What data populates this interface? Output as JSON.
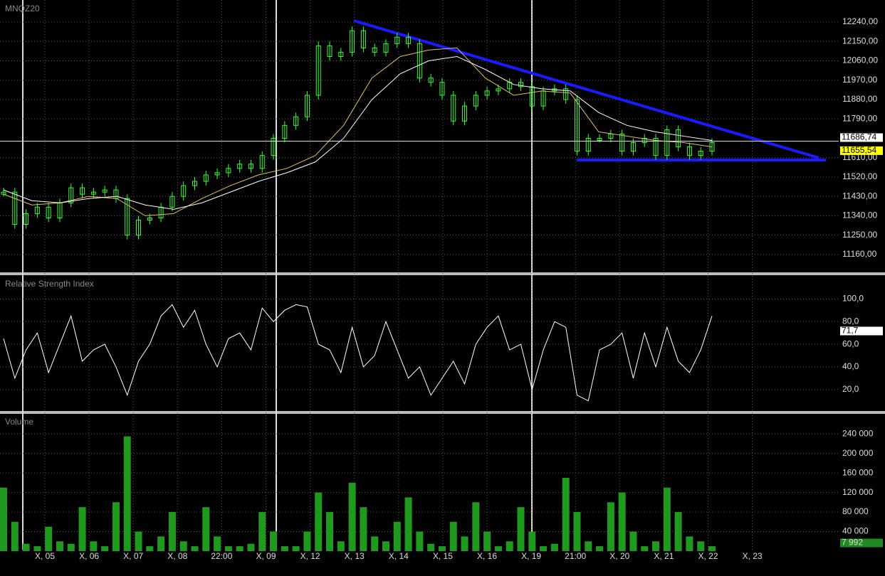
{
  "chart_data": [
    {
      "type": "candlestick",
      "title": "MNQZ20",
      "color": "#33ff33",
      "ylim": [
        11077,
        12336
      ],
      "yticks": [
        {
          "value": 11160,
          "label": "11160,00"
        },
        {
          "value": 11250,
          "label": "11250,00"
        },
        {
          "value": 11340,
          "label": "11340,00"
        },
        {
          "value": 11430,
          "label": "11430,00"
        },
        {
          "value": 11520,
          "label": "11520,00"
        },
        {
          "value": 11610,
          "label": "11610,00"
        },
        {
          "value": 11790,
          "label": "11790,00"
        },
        {
          "value": 11880,
          "label": "11880,00"
        },
        {
          "value": 11970,
          "label": "11970,00"
        },
        {
          "value": 12060,
          "label": "12060,00"
        },
        {
          "value": 12150,
          "label": "12150,00"
        },
        {
          "value": 12240,
          "label": "12240,00"
        }
      ],
      "values": [
        11450,
        11300,
        11350,
        11380,
        11330,
        11400,
        11470,
        11440,
        11450,
        11460,
        11420,
        11250,
        11320,
        11330,
        11380,
        11430,
        11480,
        11500,
        11530,
        11540,
        11560,
        11580,
        11560,
        11620,
        11700,
        11760,
        11800,
        11900,
        12130,
        12080,
        12100,
        12200,
        12120,
        12100,
        12140,
        12170,
        12140,
        11980,
        11960,
        11900,
        11780,
        11850,
        11900,
        11920,
        11930,
        11960,
        11940,
        11850,
        11920,
        11930,
        11880,
        11640,
        11700,
        11700,
        11720,
        11640,
        11680,
        11700,
        11620,
        11740,
        11660,
        11620,
        11640,
        11680
      ],
      "series": [
        {
          "color": "#e0c060",
          "values": [
            11440,
            11390,
            11400,
            11430,
            11420,
            11340,
            11350,
            11420,
            11480,
            11530,
            11560,
            11620,
            11760,
            11980,
            12080,
            12110,
            12120,
            11980,
            11900,
            11920,
            11910,
            11730,
            11710,
            11690,
            11680,
            11660
          ]
        },
        {
          "color": "#ffffff",
          "values": [
            11460,
            11410,
            11400,
            11420,
            11430,
            11390,
            11370,
            11400,
            11450,
            11500,
            11540,
            11590,
            11700,
            11880,
            12000,
            12060,
            12080,
            12020,
            11950,
            11930,
            11920,
            11820,
            11760,
            11730,
            11710,
            11690
          ]
        }
      ],
      "current": {
        "value": 11686.74,
        "label": "11686,74"
      },
      "ma_current": {
        "value": 11655.54,
        "label": "11655,54"
      }
    },
    {
      "type": "line",
      "title": "Relative Strength Index",
      "color": "#ffffff",
      "ylim": [
        1,
        121
      ],
      "yticks": [
        {
          "value": 20,
          "label": "20,0"
        },
        {
          "value": 40,
          "label": "40,0"
        },
        {
          "value": 60,
          "label": "60,0"
        },
        {
          "value": 80,
          "label": "80,0"
        },
        {
          "value": 100,
          "label": "100,0"
        }
      ],
      "values": [
        65,
        30,
        55,
        70,
        35,
        60,
        85,
        45,
        55,
        60,
        40,
        15,
        45,
        60,
        85,
        95,
        75,
        90,
        60,
        40,
        65,
        70,
        55,
        92,
        80,
        90,
        95,
        93,
        60,
        55,
        35,
        75,
        40,
        50,
        80,
        55,
        30,
        40,
        15,
        30,
        45,
        25,
        60,
        75,
        85,
        55,
        60,
        20,
        55,
        80,
        75,
        15,
        10,
        55,
        60,
        70,
        30,
        70,
        40,
        75,
        45,
        35,
        55,
        85
      ],
      "current": {
        "value": 71.7,
        "label": "71,7"
      }
    },
    {
      "type": "bar",
      "title": "Volume",
      "color": "#1f9a1f",
      "ylim": [
        0,
        281000
      ],
      "yticks": [
        {
          "value": 40000,
          "label": "40 000"
        },
        {
          "value": 80000,
          "label": "80 000"
        },
        {
          "value": 120000,
          "label": "120 000"
        },
        {
          "value": 160000,
          "label": "160 000"
        },
        {
          "value": 200000,
          "label": "200 000"
        },
        {
          "value": 240000,
          "label": "240 000"
        }
      ],
      "values": [
        130000,
        60000,
        15000,
        10000,
        50000,
        20000,
        15000,
        90000,
        20000,
        10000,
        100000,
        235000,
        40000,
        10000,
        30000,
        80000,
        20000,
        10000,
        90000,
        30000,
        10000,
        10000,
        15000,
        80000,
        40000,
        10000,
        10000,
        40000,
        120000,
        80000,
        20000,
        140000,
        90000,
        30000,
        20000,
        60000,
        110000,
        40000,
        15000,
        10000,
        60000,
        30000,
        100000,
        40000,
        10000,
        20000,
        90000,
        40000,
        10000,
        15000,
        150000,
        80000,
        20000,
        10000,
        100000,
        120000,
        40000,
        10000,
        20000,
        130000,
        80000,
        30000,
        20000,
        10000
      ],
      "current": {
        "value": 7992,
        "label": "7 992"
      },
      "x_labels": [
        "X, 05",
        "X, 06",
        "X, 07",
        "X, 08",
        "22:00",
        "X, 09",
        "X, 12",
        "X, 13",
        "X, 14",
        "X, 15",
        "X, 16",
        "X, 19",
        "21:00",
        "X, 20",
        "X, 21",
        "X, 22",
        "X, 23"
      ]
    }
  ]
}
